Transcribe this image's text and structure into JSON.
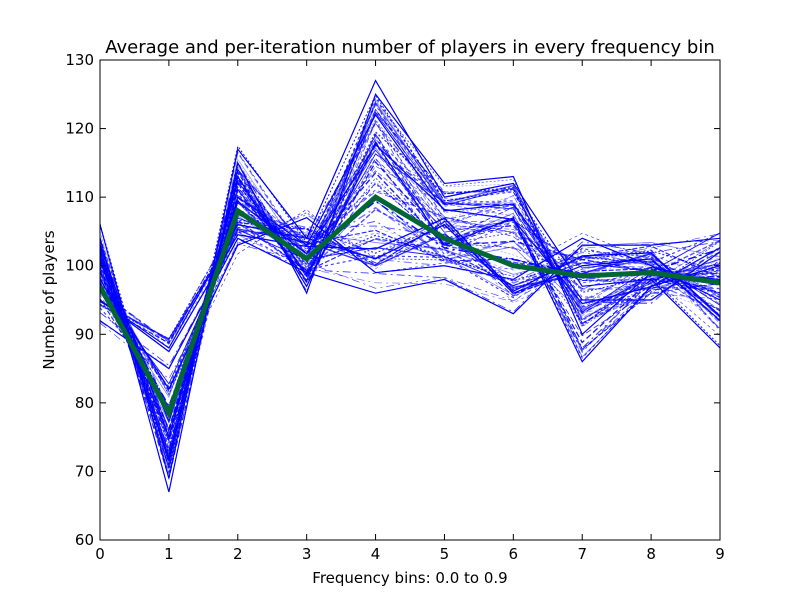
{
  "chart_data": {
    "type": "line",
    "title": "Average and per-iteration number of players in every frequency bin",
    "xlabel": "Frequency bins: 0.0 to 0.9",
    "ylabel": "Number of players",
    "x": [
      0,
      1,
      2,
      3,
      4,
      5,
      6,
      7,
      8,
      9
    ],
    "xlim": [
      0,
      9
    ],
    "ylim": [
      60,
      130
    ],
    "xticks": [
      0,
      1,
      2,
      3,
      4,
      5,
      6,
      7,
      8,
      9
    ],
    "yticks": [
      60,
      70,
      80,
      90,
      100,
      110,
      120,
      130
    ],
    "grid": false,
    "iteration_count": 80,
    "iteration_color": "#0000ff",
    "average_color": "#006633",
    "series": [
      {
        "values": [
          97,
          78.5,
          108,
          101,
          110,
          104,
          100,
          98.5,
          99,
          97.5
        ]
      },
      {
        "values": [
          106,
          69,
          117,
          104,
          127,
          110,
          112,
          97,
          98,
          88
        ]
      },
      {
        "values": [
          92,
          85,
          104,
          99,
          96,
          98,
          93,
          103,
          103,
          104
        ]
      },
      {
        "values": [
          101,
          72,
          113,
          97,
          118,
          103,
          107,
          86,
          97,
          100
        ]
      },
      {
        "values": [
          95,
          88,
          106,
          104,
          101,
          106,
          96,
          100,
          101,
          92
        ]
      },
      {
        "values": [
          103,
          75,
          110,
          103,
          122,
          108,
          109,
          95,
          95,
          102
        ]
      },
      {
        "values": [
          98,
          82,
          103,
          107,
          99,
          100,
          98,
          104,
          100,
          95
        ]
      },
      {
        "values": [
          104,
          67,
          115,
          96,
          125,
          112,
          113,
          90,
          99,
          98
        ]
      }
    ]
  }
}
